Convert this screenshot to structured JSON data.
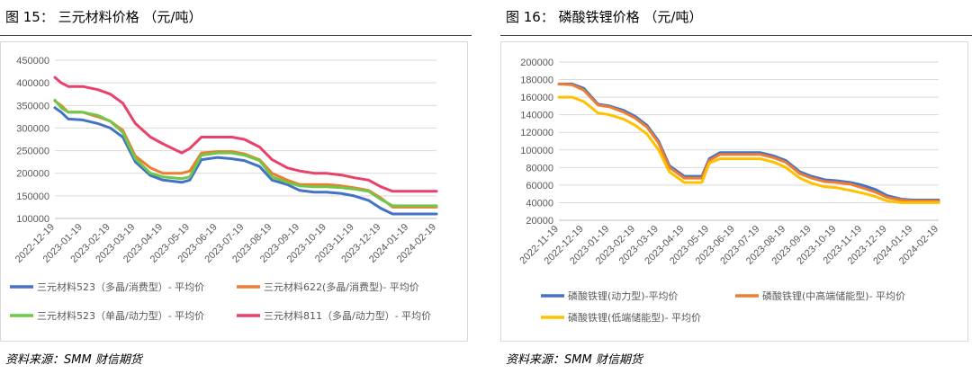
{
  "charts": [
    {
      "fig_title": "图 15： 三元材料价格 （元/吨）",
      "source": "资料来源：SMM 财信期货",
      "chart_data": {
        "type": "line",
        "ylim": [
          100000,
          450000
        ],
        "yticks": [
          100000,
          150000,
          200000,
          250000,
          300000,
          350000,
          400000,
          450000
        ],
        "ytick_labels": [
          "100000",
          "150000",
          "200000",
          "250000",
          "300000",
          "350000",
          "400000",
          "450000"
        ],
        "xticks": [
          "2022-12-19",
          "2023-01-19",
          "2023-02-19",
          "2023-03-19",
          "2023-04-19",
          "2023-05-19",
          "2023-06-19",
          "2023-07-19",
          "2023-08-19",
          "2023-09-19",
          "2023-10-19",
          "2023-11-19",
          "2023-12-19",
          "2024-01-19",
          "2024-02-19"
        ],
        "grid": true,
        "legend": "bottom",
        "series": [
          {
            "name": "三元材料523（多晶/消费型）- 平均价",
            "color": "#4472C4",
            "x": [
              "2022-12-19",
              "2022-12-26",
              "2023-01-03",
              "2023-01-19",
              "2023-02-05",
              "2023-02-19",
              "2023-03-05",
              "2023-03-19",
              "2023-04-05",
              "2023-04-19",
              "2023-05-10",
              "2023-05-19",
              "2023-06-01",
              "2023-06-19",
              "2023-07-05",
              "2023-07-19",
              "2023-08-05",
              "2023-08-19",
              "2023-09-05",
              "2023-09-19",
              "2023-10-05",
              "2023-10-19",
              "2023-11-05",
              "2023-11-19",
              "2023-12-05",
              "2023-12-19",
              "2024-01-01",
              "2024-01-19",
              "2024-02-05",
              "2024-02-19"
            ],
            "values": [
              345000,
              335000,
              320000,
              318000,
              310000,
              300000,
              280000,
              225000,
              195000,
              185000,
              180000,
              185000,
              230000,
              235000,
              232000,
              228000,
              215000,
              185000,
              175000,
              162000,
              158000,
              158000,
              155000,
              150000,
              140000,
              122000,
              110000,
              110000,
              110000,
              110000
            ]
          },
          {
            "name": "三元材料622(多晶/消费型)- 平均价",
            "color": "#ED7D31",
            "x": [
              "2022-12-19",
              "2022-12-26",
              "2023-01-03",
              "2023-01-19",
              "2023-02-05",
              "2023-02-19",
              "2023-03-05",
              "2023-03-19",
              "2023-04-05",
              "2023-04-19",
              "2023-05-10",
              "2023-05-19",
              "2023-06-01",
              "2023-06-19",
              "2023-07-05",
              "2023-07-19",
              "2023-08-05",
              "2023-08-19",
              "2023-09-05",
              "2023-09-19",
              "2023-10-05",
              "2023-10-19",
              "2023-11-05",
              "2023-11-19",
              "2023-12-05",
              "2023-12-19",
              "2024-01-01",
              "2024-01-19",
              "2024-02-05",
              "2024-02-19"
            ],
            "values": [
              360000,
              350000,
              335000,
              335000,
              325000,
              315000,
              295000,
              238000,
              212000,
              200000,
              200000,
              205000,
              245000,
              248000,
              248000,
              243000,
              230000,
              200000,
              185000,
              175000,
              175000,
              175000,
              172000,
              168000,
              162000,
              145000,
              125000,
              125000,
              125000,
              125000
            ]
          },
          {
            "name": "三元材料523（单晶/动力型）- 平均价",
            "color": "#70C84A",
            "x": [
              "2022-12-19",
              "2022-12-26",
              "2023-01-03",
              "2023-01-19",
              "2023-02-05",
              "2023-02-19",
              "2023-03-05",
              "2023-03-19",
              "2023-04-05",
              "2023-04-19",
              "2023-05-10",
              "2023-05-19",
              "2023-06-01",
              "2023-06-19",
              "2023-07-05",
              "2023-07-19",
              "2023-08-05",
              "2023-08-19",
              "2023-09-05",
              "2023-09-19",
              "2023-10-05",
              "2023-10-19",
              "2023-11-05",
              "2023-11-19",
              "2023-12-05",
              "2023-12-19",
              "2024-01-01",
              "2024-01-19",
              "2024-02-05",
              "2024-02-19"
            ],
            "values": [
              362000,
              345000,
              335000,
              335000,
              328000,
              315000,
              290000,
              232000,
              200000,
              192000,
              188000,
              192000,
              240000,
              245000,
              245000,
              240000,
              228000,
              192000,
              180000,
              172000,
              170000,
              170000,
              168000,
              165000,
              160000,
              142000,
              128000,
              128000,
              128000,
              128000
            ]
          },
          {
            "name": "三元材料811（多晶/动力型）- 平均价",
            "color": "#E9416A",
            "x": [
              "2022-12-19",
              "2022-12-26",
              "2023-01-03",
              "2023-01-19",
              "2023-02-05",
              "2023-02-19",
              "2023-03-05",
              "2023-03-19",
              "2023-04-05",
              "2023-04-19",
              "2023-05-10",
              "2023-05-19",
              "2023-06-01",
              "2023-06-19",
              "2023-07-05",
              "2023-07-19",
              "2023-08-05",
              "2023-08-19",
              "2023-09-05",
              "2023-09-19",
              "2023-10-05",
              "2023-10-19",
              "2023-11-05",
              "2023-11-19",
              "2023-12-05",
              "2023-12-19",
              "2024-01-01",
              "2024-01-19",
              "2024-02-05",
              "2024-02-19"
            ],
            "values": [
              412000,
              400000,
              392000,
              392000,
              385000,
              375000,
              355000,
              310000,
              280000,
              265000,
              245000,
              255000,
              280000,
              280000,
              280000,
              275000,
              258000,
              230000,
              212000,
              205000,
              200000,
              200000,
              196000,
              190000,
              185000,
              170000,
              160000,
              160000,
              160000,
              160000
            ]
          }
        ]
      }
    },
    {
      "fig_title": "图 16： 磷酸铁锂价格 （元/吨）",
      "source": "资料来源：SMM 财信期货",
      "chart_data": {
        "type": "line",
        "ylim": [
          20000,
          200000
        ],
        "yticks": [
          20000,
          40000,
          60000,
          80000,
          100000,
          120000,
          140000,
          160000,
          180000,
          200000
        ],
        "ytick_labels": [
          "20000",
          "40000",
          "60000",
          "80000",
          "100000",
          "120000",
          "140000",
          "160000",
          "180000",
          "200000"
        ],
        "xticks": [
          "2022-11-19",
          "2022-12-19",
          "2023-01-19",
          "2023-02-19",
          "2023-03-19",
          "2023-04-19",
          "2023-05-19",
          "2023-06-19",
          "2023-07-19",
          "2023-08-19",
          "2023-09-19",
          "2023-10-19",
          "2023-11-19",
          "2023-12-19",
          "2024-01-19",
          "2024-02-19"
        ],
        "grid": true,
        "legend": "bottom",
        "series": [
          {
            "name": "磷酸铁锂(动力型)-平均价",
            "color": "#4472C4",
            "x": [
              "2022-11-19",
              "2022-12-05",
              "2022-12-19",
              "2023-01-05",
              "2023-01-19",
              "2023-02-05",
              "2023-02-19",
              "2023-03-05",
              "2023-03-19",
              "2023-04-01",
              "2023-04-19",
              "2023-05-10",
              "2023-05-19",
              "2023-06-01",
              "2023-06-19",
              "2023-07-05",
              "2023-07-19",
              "2023-08-05",
              "2023-08-19",
              "2023-09-05",
              "2023-09-19",
              "2023-10-05",
              "2023-10-19",
              "2023-11-05",
              "2023-11-19",
              "2023-12-05",
              "2023-12-19",
              "2024-01-05",
              "2024-01-19",
              "2024-02-05",
              "2024-02-19"
            ],
            "values": [
              175000,
              175000,
              170000,
              152000,
              150000,
              145000,
              138000,
              128000,
              110000,
              82000,
              70000,
              70000,
              90000,
              97000,
              97000,
              97000,
              97000,
              93000,
              88000,
              75000,
              70000,
              66000,
              65000,
              63000,
              60000,
              55000,
              48000,
              44000,
              43000,
              43000,
              43000
            ]
          },
          {
            "name": "磷酸铁锂(中高端储能型)- 平均价",
            "color": "#ED7D31",
            "x": [
              "2022-11-19",
              "2022-12-05",
              "2022-12-19",
              "2023-01-05",
              "2023-01-19",
              "2023-02-05",
              "2023-02-19",
              "2023-03-05",
              "2023-03-19",
              "2023-04-01",
              "2023-04-19",
              "2023-05-10",
              "2023-05-19",
              "2023-06-01",
              "2023-06-19",
              "2023-07-05",
              "2023-07-19",
              "2023-08-05",
              "2023-08-19",
              "2023-09-05",
              "2023-09-19",
              "2023-10-05",
              "2023-10-19",
              "2023-11-05",
              "2023-11-19",
              "2023-12-05",
              "2023-12-19",
              "2024-01-05",
              "2024-01-19",
              "2024-02-05",
              "2024-02-19"
            ],
            "values": [
              175000,
              174000,
              168000,
              151000,
              149000,
              143000,
              136000,
              126000,
              108000,
              80000,
              68000,
              68000,
              88000,
              95000,
              95000,
              95000,
              95000,
              91000,
              86000,
              73000,
              68000,
              64000,
              63000,
              61000,
              57000,
              52000,
              46000,
              43000,
              42000,
              42000,
              42000
            ]
          },
          {
            "name": "磷酸铁锂(低端储能型)- 平均价",
            "color": "#FFC000",
            "x": [
              "2022-11-19",
              "2022-12-05",
              "2022-12-19",
              "2023-01-05",
              "2023-01-19",
              "2023-02-05",
              "2023-02-19",
              "2023-03-05",
              "2023-03-19",
              "2023-04-01",
              "2023-04-19",
              "2023-05-10",
              "2023-05-19",
              "2023-06-01",
              "2023-06-19",
              "2023-07-05",
              "2023-07-19",
              "2023-08-05",
              "2023-08-19",
              "2023-09-05",
              "2023-09-19",
              "2023-10-05",
              "2023-10-19",
              "2023-11-05",
              "2023-11-19",
              "2023-12-05",
              "2023-12-19",
              "2024-01-05",
              "2024-01-19",
              "2024-02-05",
              "2024-02-19"
            ],
            "values": [
              160000,
              160000,
              155000,
              142000,
              140000,
              135000,
              128000,
              118000,
              100000,
              75000,
              63000,
              63000,
              85000,
              90000,
              90000,
              90000,
              90000,
              86000,
              80000,
              68000,
              62000,
              58000,
              57000,
              54000,
              51000,
              47000,
              42000,
              40000,
              40000,
              40000,
              40000
            ]
          }
        ]
      }
    }
  ]
}
